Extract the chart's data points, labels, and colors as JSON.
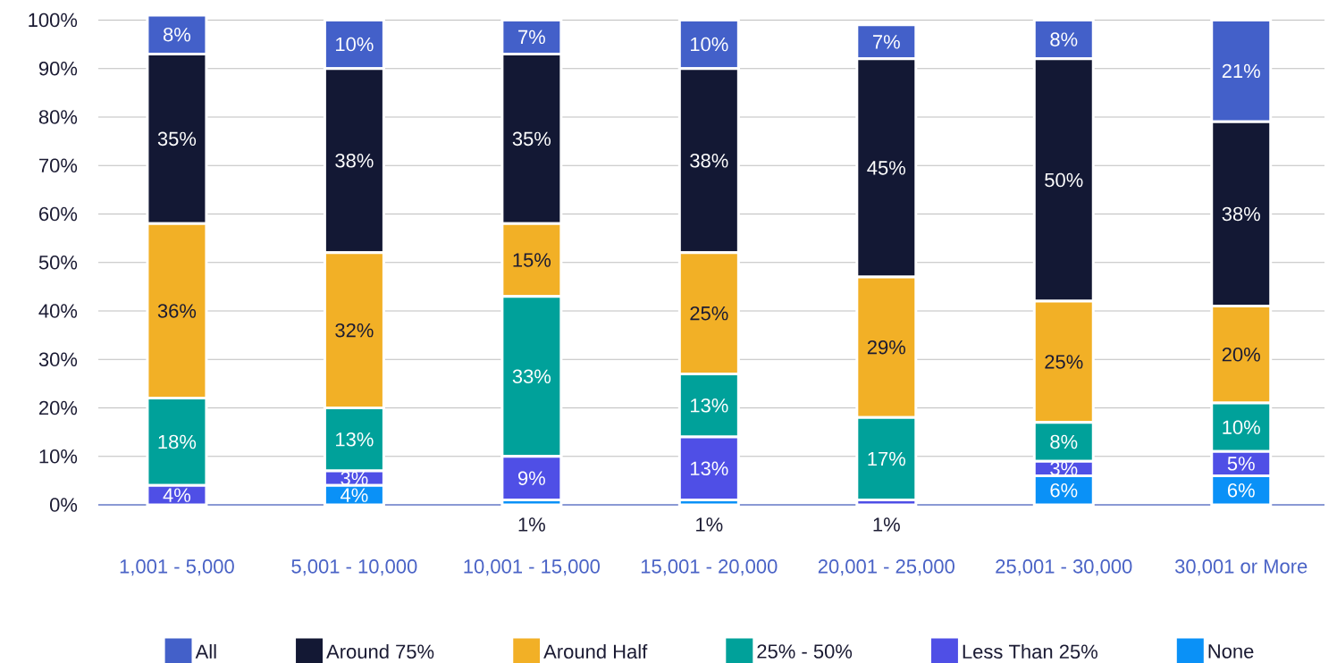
{
  "chart_data": {
    "type": "bar",
    "stacked": true,
    "data_labels": false,
    "grid": "y",
    "legend": "bottom",
    "categories": [
      "1,001 - 5,000",
      "5,001 - 10,000",
      "10,001 - 15,000",
      "15,001 - 20,000",
      "20,001 - 25,000",
      "25,001 - 30,000",
      "30,001 or More"
    ],
    "ylim": [
      0,
      101
    ],
    "yticks": [
      {
        "value": 0,
        "label": "0%"
      },
      {
        "value": 10,
        "label": "10%"
      },
      {
        "value": 20,
        "label": "20%"
      },
      {
        "value": 30,
        "label": "30%"
      },
      {
        "value": 40,
        "label": "40%"
      },
      {
        "value": 50,
        "label": "50%"
      },
      {
        "value": 60,
        "label": "60%"
      },
      {
        "value": 70,
        "label": "70%"
      },
      {
        "value": 80,
        "label": "80%"
      },
      {
        "value": 90,
        "label": "90%"
      },
      {
        "value": 100,
        "label": "100%"
      }
    ],
    "series": [
      {
        "name": "None",
        "color": "#0a91f7",
        "values": [
          0,
          4,
          1,
          1,
          0,
          6,
          6
        ],
        "value_labels": [
          null,
          "4%",
          "1%",
          "1%",
          null,
          "6%",
          "6%"
        ]
      },
      {
        "name": "Less Than 25%",
        "color": "#4f4fe6",
        "values": [
          4,
          3,
          9,
          13,
          1,
          3,
          5
        ],
        "value_labels": [
          "4%",
          "3%",
          "9%",
          "13%",
          "1%",
          "3%",
          "5%"
        ]
      },
      {
        "name": "25% - 50%",
        "color": "#00a19a",
        "values": [
          18,
          13,
          33,
          13,
          17,
          8,
          10
        ],
        "value_labels": [
          "18%",
          "13%",
          "33%",
          "13%",
          "17%",
          "8%",
          "10%"
        ]
      },
      {
        "name": "Around Half",
        "color": "#f2b026",
        "values": [
          36,
          32,
          15,
          25,
          29,
          25,
          20
        ],
        "value_labels": [
          "36%",
          "32%",
          "15%",
          "25%",
          "29%",
          "25%",
          "20%"
        ]
      },
      {
        "name": "Around 75%",
        "color": "#131834",
        "values": [
          35,
          38,
          35,
          38,
          45,
          50,
          38
        ],
        "value_labels": [
          "35%",
          "38%",
          "35%",
          "38%",
          "45%",
          "50%",
          "38%"
        ]
      },
      {
        "name": "All",
        "color": "#4360c9",
        "values": [
          8,
          10,
          7,
          10,
          7,
          8,
          21
        ],
        "value_labels": [
          "8%",
          "10%",
          "7%",
          "10%",
          "7%",
          "8%",
          "21%"
        ]
      }
    ]
  }
}
